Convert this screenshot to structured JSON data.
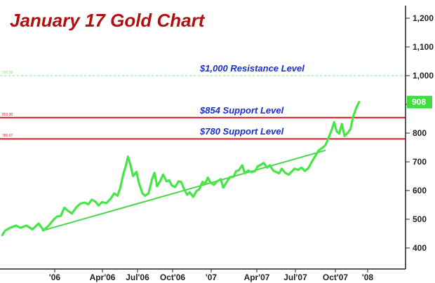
{
  "chart_data": {
    "type": "line",
    "title": "January 17 Gold Chart",
    "y_axis": {
      "min": 350,
      "max": 1250,
      "ticks": [
        400,
        500,
        600,
        700,
        800,
        900,
        "1,000",
        "1,100",
        "1,200"
      ],
      "side": "right"
    },
    "x_axis": {
      "ticks": [
        "'06",
        "Apr'06",
        "Jul'06",
        "Oct'06",
        "'07",
        "Apr'07",
        "Jul'07",
        "Oct'07",
        "'08"
      ]
    },
    "grid": false,
    "last_value": "908",
    "levels": [
      {
        "value": 1000,
        "label": "$1,000 Resistance Level",
        "tiny": "996.38",
        "style": "dashed",
        "color": "#8be08b"
      },
      {
        "value": 854,
        "label": "$854 Support Level",
        "tiny": "853.90",
        "style": "solid",
        "color": "#e02020"
      },
      {
        "value": 780,
        "label": "$780 Support Level",
        "tiny": "780.67",
        "style": "solid",
        "color": "#e02020"
      }
    ],
    "trendline": {
      "start": {
        "t": 3.0,
        "y": 460
      },
      "end": {
        "t": 36.0,
        "y": 740
      },
      "color": "#46d846"
    },
    "series": [
      {
        "color": "#46e646",
        "points": [
          [
            -1.6,
            445
          ],
          [
            -1.3,
            460
          ],
          [
            -0.7,
            470
          ],
          [
            0.0,
            478
          ],
          [
            0.5,
            470
          ],
          [
            1.2,
            478
          ],
          [
            1.9,
            465
          ],
          [
            2.6,
            485
          ],
          [
            3.2,
            462
          ],
          [
            3.8,
            478
          ],
          [
            4.4,
            500
          ],
          [
            4.8,
            510
          ],
          [
            5.2,
            512
          ],
          [
            5.6,
            540
          ],
          [
            6.0,
            530
          ],
          [
            6.5,
            520
          ],
          [
            7.0,
            542
          ],
          [
            7.5,
            555
          ],
          [
            8.0,
            558
          ],
          [
            8.4,
            552
          ],
          [
            8.8,
            568
          ],
          [
            9.2,
            562
          ],
          [
            9.6,
            548
          ],
          [
            10.0,
            560
          ],
          [
            10.5,
            556
          ],
          [
            11.0,
            572
          ],
          [
            11.4,
            590
          ],
          [
            11.8,
            582
          ],
          [
            12.1,
            608
          ],
          [
            12.5,
            660
          ],
          [
            12.8,
            690
          ],
          [
            13.0,
            718
          ],
          [
            13.3,
            690
          ],
          [
            13.6,
            650
          ],
          [
            14.0,
            665
          ],
          [
            14.3,
            625
          ],
          [
            14.7,
            590
          ],
          [
            15.0,
            582
          ],
          [
            15.4,
            590
          ],
          [
            15.8,
            638
          ],
          [
            16.1,
            662
          ],
          [
            16.4,
            615
          ],
          [
            16.8,
            635
          ],
          [
            17.1,
            656
          ],
          [
            17.5,
            632
          ],
          [
            17.8,
            636
          ],
          [
            18.1,
            618
          ],
          [
            18.5,
            612
          ],
          [
            18.9,
            632
          ],
          [
            19.2,
            630
          ],
          [
            19.5,
            608
          ],
          [
            19.9,
            585
          ],
          [
            20.2,
            594
          ],
          [
            20.6,
            578
          ],
          [
            21.0,
            599
          ],
          [
            21.3,
            604
          ],
          [
            21.7,
            630
          ],
          [
            22.0,
            624
          ],
          [
            22.3,
            645
          ],
          [
            22.6,
            628
          ],
          [
            23.0,
            620
          ],
          [
            23.4,
            632
          ],
          [
            23.8,
            640
          ],
          [
            24.1,
            610
          ],
          [
            24.5,
            630
          ],
          [
            24.9,
            647
          ],
          [
            25.3,
            648
          ],
          [
            25.6,
            668
          ],
          [
            25.9,
            670
          ],
          [
            26.3,
            688
          ],
          [
            26.6,
            660
          ],
          [
            27.0,
            670
          ],
          [
            27.4,
            664
          ],
          [
            27.8,
            668
          ],
          [
            28.1,
            684
          ],
          [
            28.5,
            690
          ],
          [
            28.8,
            696
          ],
          [
            29.2,
            680
          ],
          [
            29.5,
            688
          ],
          [
            29.9,
            670
          ],
          [
            30.2,
            665
          ],
          [
            30.6,
            660
          ],
          [
            30.9,
            676
          ],
          [
            31.3,
            662
          ],
          [
            31.7,
            655
          ],
          [
            32.0,
            664
          ],
          [
            32.4,
            676
          ],
          [
            32.8,
            672
          ],
          [
            33.2,
            680
          ],
          [
            33.6,
            668
          ],
          [
            34.0,
            678
          ],
          [
            34.4,
            700
          ],
          [
            34.8,
            720
          ],
          [
            35.2,
            740
          ],
          [
            35.6,
            748
          ],
          [
            36.0,
            758
          ],
          [
            36.3,
            780
          ],
          [
            36.7,
            810
          ],
          [
            37.0,
            838
          ],
          [
            37.3,
            806
          ],
          [
            37.6,
            798
          ],
          [
            37.9,
            832
          ],
          [
            38.2,
            790
          ],
          [
            38.6,
            802
          ],
          [
            38.9,
            814
          ],
          [
            39.2,
            856
          ],
          [
            39.6,
            890
          ],
          [
            39.9,
            908
          ]
        ]
      }
    ]
  }
}
